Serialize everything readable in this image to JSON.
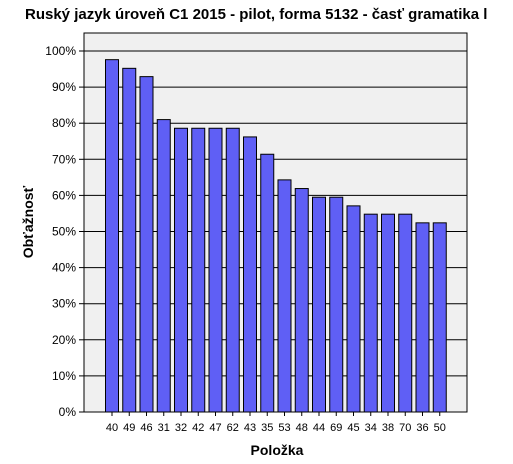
{
  "chart_data": {
    "type": "bar",
    "title": "Ruský jazyk úroveň C1 2015 - pilot, forma 5132 - časť gramatika l",
    "xlabel": "Položka",
    "ylabel": "Obťažnosť",
    "categories": [
      "40",
      "49",
      "46",
      "31",
      "32",
      "42",
      "47",
      "62",
      "43",
      "35",
      "53",
      "48",
      "44",
      "69",
      "45",
      "34",
      "38",
      "70",
      "36",
      "50"
    ],
    "values": [
      97.6,
      95.2,
      92.9,
      81.0,
      78.6,
      78.6,
      78.6,
      78.6,
      76.2,
      71.4,
      64.3,
      61.9,
      59.5,
      59.5,
      57.1,
      54.8,
      54.8,
      54.8,
      52.4,
      52.4
    ],
    "ylim": [
      0,
      100
    ],
    "yticks": [
      "0%",
      "10%",
      "20%",
      "30%",
      "40%",
      "50%",
      "60%",
      "70%",
      "80%",
      "90%",
      "100%"
    ],
    "grid": true,
    "colors": {
      "bar": "#5f5ff5",
      "bar_stroke": "#000000",
      "plot_bg": "#f0f0f0",
      "grid": "#000000"
    }
  }
}
